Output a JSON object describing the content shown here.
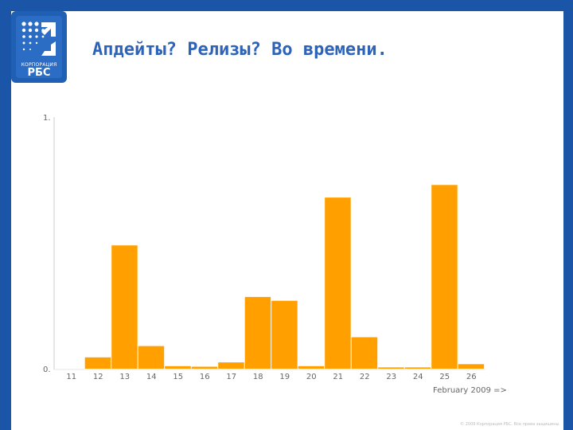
{
  "slide": {
    "title": "Апдейты? Релизы? Во времени.",
    "logo_line1": "КОРПОРАЦИЯ",
    "logo_line2": "РБС",
    "footer": "© 2009 Корпорация РБС. Все права защищены."
  },
  "colors": {
    "background": "#1a55a8",
    "title": "#2d63b8",
    "bar": "#ff9f00",
    "axis": "#cccccc"
  },
  "chart_data": {
    "type": "bar",
    "categories": [
      "11",
      "12",
      "13",
      "14",
      "15",
      "16",
      "17",
      "18",
      "19",
      "20",
      "21",
      "22",
      "23",
      "24",
      "25",
      "26"
    ],
    "values": [
      0,
      0.045,
      0.49,
      0.09,
      0.01,
      0.008,
      0.025,
      0.285,
      0.27,
      0.01,
      0.68,
      0.125,
      0.005,
      0.005,
      0.73,
      0.018
    ],
    "xlabel": "February 2009 =>",
    "ylabel": "",
    "ylim": [
      0,
      1
    ],
    "yticks": [
      "0.",
      "1."
    ],
    "grid": false,
    "legend": "none"
  }
}
